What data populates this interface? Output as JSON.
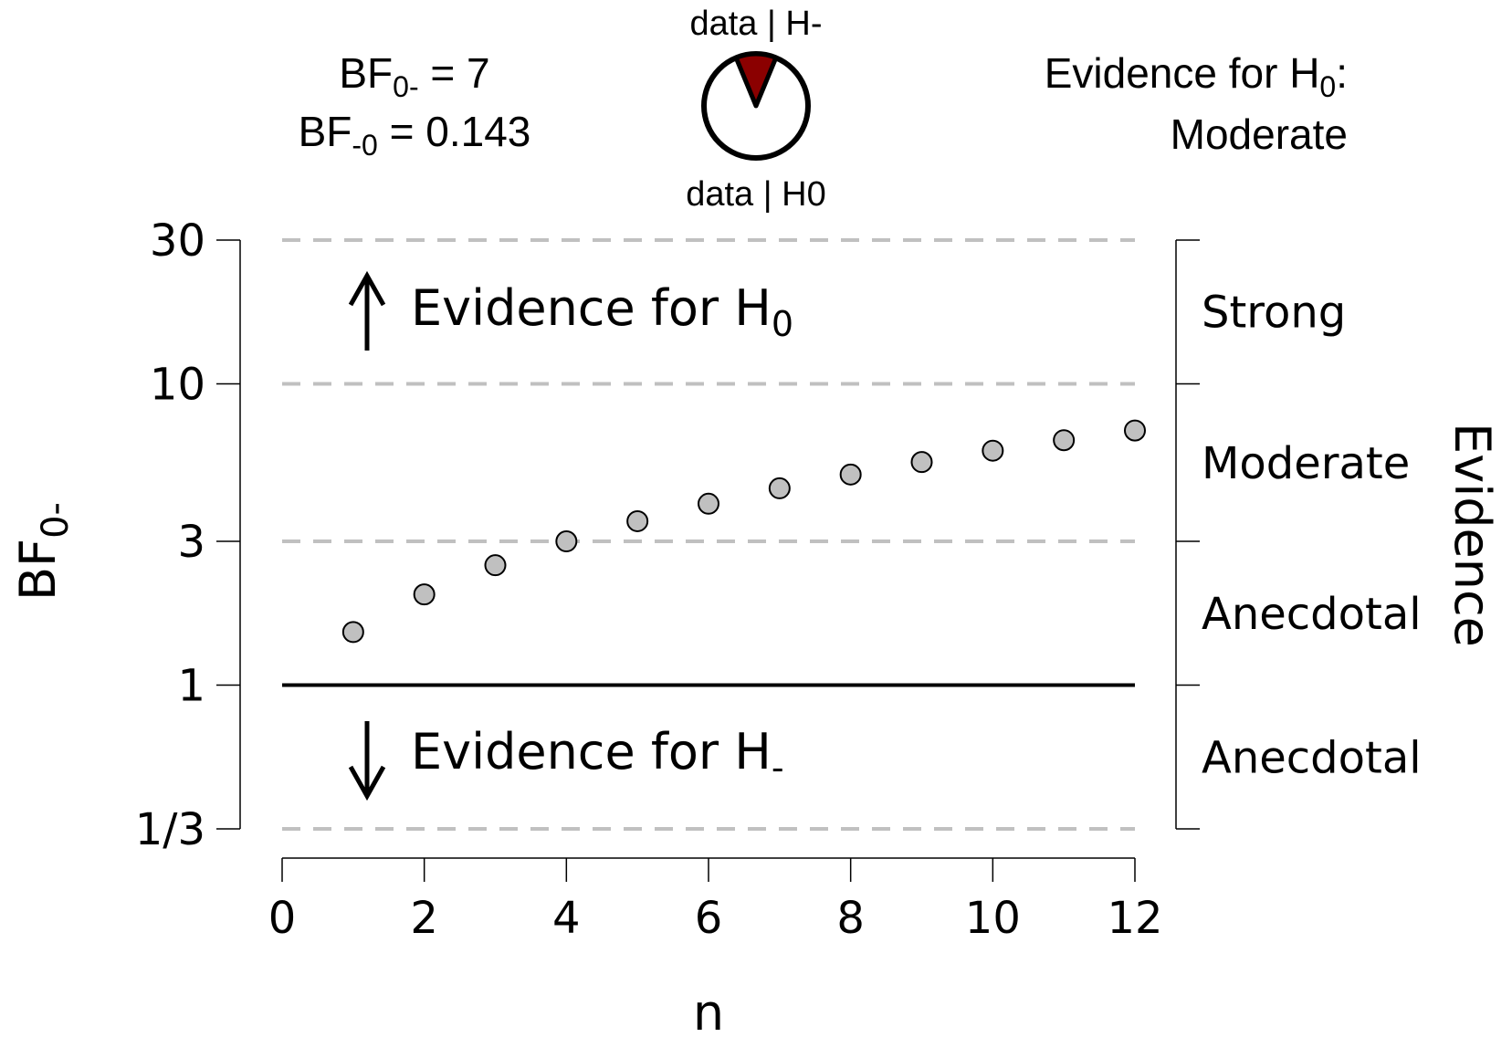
{
  "header": {
    "bf_left": {
      "base": "BF",
      "sub": "0-",
      "rest": " = 7"
    },
    "bf_right": {
      "base": "BF",
      "sub": "-0",
      "rest": " = 0.143"
    },
    "pie_top_label": "data | H-",
    "pie_bottom_label": "data | H0",
    "evidence_prefix": "Evidence for H",
    "evidence_sub": "0",
    "evidence_suffix": ":",
    "evidence_strength": "Moderate"
  },
  "pie": {
    "fraction_alt": 0.125,
    "color_alt": "#8b0000",
    "color_null": "#ffffff"
  },
  "annotations": {
    "up_text": "Evidence for H",
    "up_sub": "0",
    "down_text": "Evidence for H",
    "down_sub": "-"
  },
  "colors": {
    "points_fill": "#c0c0c0",
    "dashed_lines": "#c0c0c0",
    "reference_line": "#000000"
  },
  "chart_data": {
    "type": "scatter",
    "xlabel": "n",
    "ylabel_base": "BF",
    "ylabel_sub": "0-",
    "right_axis_label": "Evidence",
    "y_scale": "log",
    "xlim": [
      0,
      12
    ],
    "ylim": [
      0.3333,
      30
    ],
    "x_ticks": [
      0,
      2,
      4,
      6,
      8,
      10,
      12
    ],
    "y_ticks": [
      {
        "value": 0.3333,
        "label": "1/3"
      },
      {
        "value": 1,
        "label": "1"
      },
      {
        "value": 3,
        "label": "3"
      },
      {
        "value": 10,
        "label": "10"
      },
      {
        "value": 30,
        "label": "30"
      }
    ],
    "dashed_levels": [
      0.3333,
      3,
      10,
      30
    ],
    "reference_level": 1,
    "evidence_categories": [
      {
        "label": "Strong",
        "low": 10,
        "high": 30
      },
      {
        "label": "Moderate",
        "low": 3,
        "high": 10
      },
      {
        "label": "Anecdotal",
        "low": 1,
        "high": 3
      },
      {
        "label": "Anecdotal",
        "low": 0.3333,
        "high": 1
      }
    ],
    "series": [
      {
        "x": [
          1,
          2,
          3,
          4,
          5,
          6,
          7,
          8,
          9,
          10,
          11,
          12
        ],
        "y": [
          1.5,
          2.0,
          2.5,
          3.0,
          3.5,
          4.0,
          4.5,
          5.0,
          5.5,
          6.0,
          6.5,
          7.0
        ]
      }
    ]
  }
}
